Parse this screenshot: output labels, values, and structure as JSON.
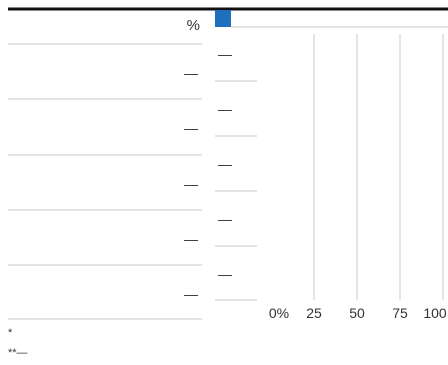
{
  "table": {
    "header_unit": "%",
    "rows": [
      {
        "label": "",
        "value": "—"
      },
      {
        "label": "",
        "value": "—"
      },
      {
        "label": "",
        "value": "—"
      },
      {
        "label": "",
        "value": "—"
      },
      {
        "label": "",
        "value": "—"
      }
    ]
  },
  "footnotes": [
    "*",
    "**—"
  ],
  "colors": {
    "accent": "#1f6fbf",
    "rule_dark": "#111111",
    "rule_light": "#c8c8c8",
    "grid": "#c8c8c8",
    "text": "#333333"
  },
  "chart_data": {
    "type": "bar",
    "orientation": "horizontal",
    "categories": [
      "",
      "",
      "",
      "",
      ""
    ],
    "series": [
      {
        "values": [
          null,
          null,
          null,
          null,
          null
        ],
        "labels": [
          "—",
          "—",
          "—",
          "—",
          "—"
        ]
      }
    ],
    "title": "",
    "xlabel": "",
    "ylabel": "",
    "xlim": [
      0,
      100
    ],
    "xticks": [
      0,
      25,
      50,
      75,
      100
    ],
    "xtick_labels": [
      "0%",
      "25",
      "50",
      "75",
      "100"
    ],
    "grid": true
  }
}
